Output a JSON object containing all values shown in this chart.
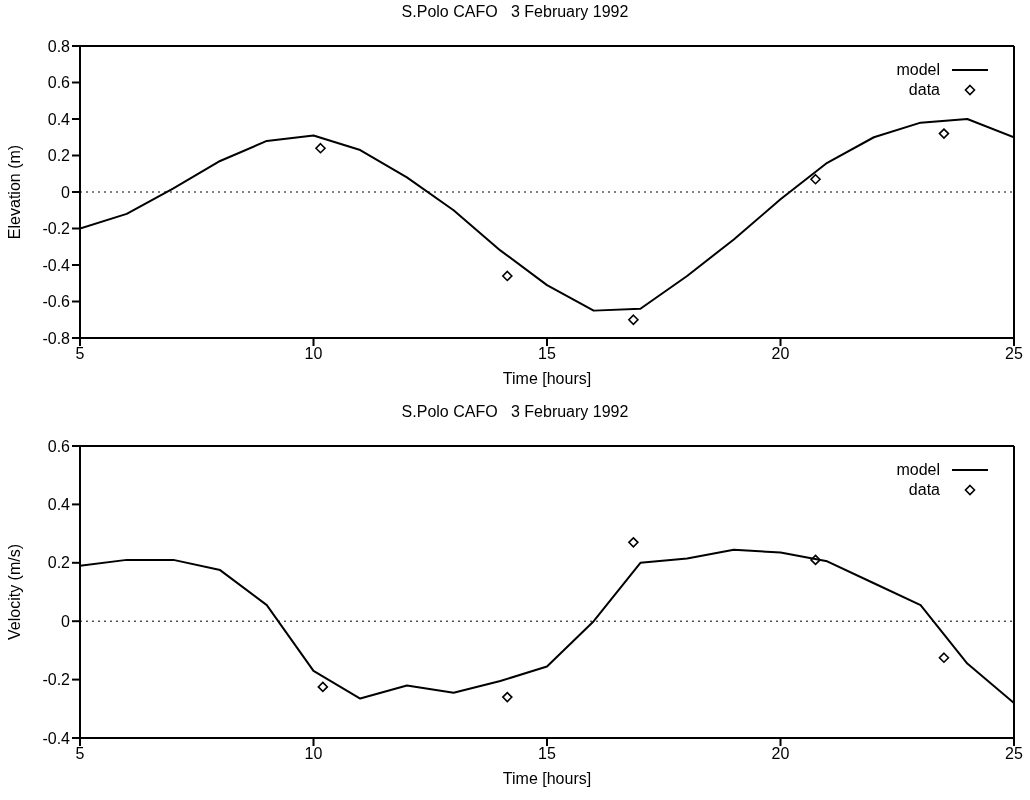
{
  "chart_data": [
    {
      "type": "line",
      "title": "S.Polo CAFO   3 February 1992",
      "xlabel": "Time [hours]",
      "ylabel": "Elevation  (m)",
      "xlim": [
        5,
        25
      ],
      "xticks": [
        5,
        10,
        15,
        20,
        25
      ],
      "ylim": [
        -0.8,
        0.8
      ],
      "yticks": [
        -0.8,
        -0.6,
        -0.4,
        -0.2,
        0,
        0.2,
        0.4,
        0.6,
        0.8
      ],
      "legend": "top right",
      "ref_lines": [
        {
          "axis": "y",
          "value": 0,
          "line_style": "dotted",
          "color": "#000000"
        }
      ],
      "series": [
        {
          "name": "model",
          "color": "#000000",
          "marker": "none",
          "line_style": "solid",
          "x": [
            5,
            6,
            7,
            8,
            9,
            10,
            11,
            12,
            13,
            14,
            15,
            16,
            17,
            18,
            19,
            20,
            21,
            22,
            23,
            24,
            25
          ],
          "values": [
            -0.2,
            -0.12,
            0.02,
            0.17,
            0.28,
            0.31,
            0.23,
            0.08,
            -0.1,
            -0.32,
            -0.51,
            -0.65,
            -0.64,
            -0.46,
            -0.26,
            -0.04,
            0.16,
            0.3,
            0.38,
            0.4,
            0.3
          ]
        },
        {
          "name": "data",
          "type": "scatter",
          "color": "#000000",
          "marker": "diamond",
          "x": [
            10.15,
            14.15,
            16.85,
            20.75,
            23.5
          ],
          "values": [
            0.24,
            -0.46,
            -0.7,
            0.07,
            0.32
          ]
        }
      ]
    },
    {
      "type": "line",
      "title": "S.Polo CAFO   3 February 1992",
      "xlabel": "Time [hours]",
      "ylabel": "Velocity    (m/s)",
      "xlim": [
        5,
        25
      ],
      "xticks": [
        5,
        10,
        15,
        20,
        25
      ],
      "ylim": [
        -0.4,
        0.6
      ],
      "yticks": [
        -0.4,
        -0.2,
        0,
        0.2,
        0.4,
        0.6
      ],
      "legend": "top right",
      "ref_lines": [
        {
          "axis": "y",
          "value": 0,
          "line_style": "dotted",
          "color": "#000000"
        }
      ],
      "series": [
        {
          "name": "model",
          "color": "#000000",
          "marker": "none",
          "line_style": "solid",
          "x": [
            5,
            6,
            7,
            8,
            9,
            10,
            11,
            12,
            13,
            14,
            15,
            16,
            17,
            18,
            19,
            20,
            21,
            22,
            23,
            24,
            25
          ],
          "values": [
            0.19,
            0.21,
            0.21,
            0.175,
            0.055,
            -0.17,
            -0.265,
            -0.22,
            -0.245,
            -0.205,
            -0.155,
            0,
            0.2,
            0.215,
            0.245,
            0.235,
            0.205,
            0.13,
            0.055,
            -0.145,
            -0.28
          ]
        },
        {
          "name": "data",
          "type": "scatter",
          "color": "#000000",
          "marker": "diamond",
          "x": [
            10.2,
            14.15,
            16.85,
            20.75,
            23.5
          ],
          "values": [
            -0.225,
            -0.26,
            0.27,
            0.21,
            -0.125
          ]
        }
      ]
    }
  ]
}
